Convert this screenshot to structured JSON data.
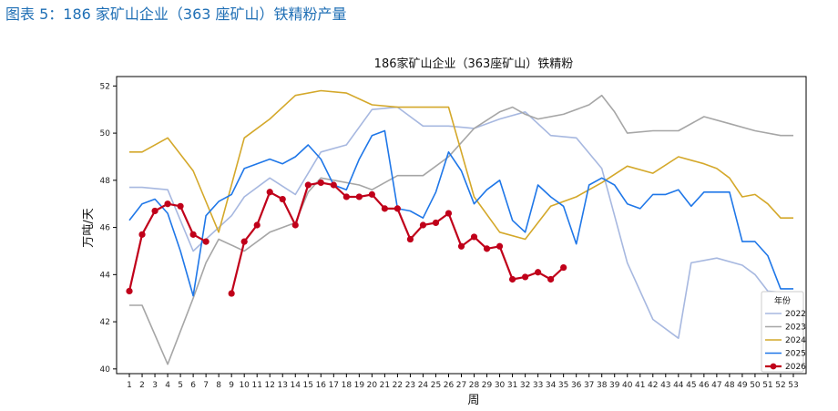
{
  "caption": "图表 5：186 家矿山企业（363 座矿山）铁精粉产量",
  "chart_data": {
    "type": "line",
    "title": "186家矿山企业（363座矿山）铁精粉",
    "xlabel": "周",
    "ylabel": "万吨/天",
    "x": [
      1,
      2,
      3,
      4,
      5,
      6,
      7,
      8,
      9,
      10,
      11,
      12,
      13,
      14,
      15,
      16,
      17,
      18,
      19,
      20,
      21,
      22,
      23,
      24,
      25,
      26,
      27,
      28,
      29,
      30,
      31,
      32,
      33,
      34,
      35,
      36,
      37,
      38,
      39,
      40,
      41,
      42,
      43,
      44,
      45,
      46,
      47,
      48,
      49,
      50,
      51,
      52,
      53
    ],
    "xlim": [
      0,
      54
    ],
    "ylim": [
      39.8,
      52.4
    ],
    "yticks": [
      40,
      42,
      44,
      46,
      48,
      50,
      52
    ],
    "grid": false,
    "legend": {
      "title": "年份",
      "placement": "lower-right"
    },
    "series": [
      {
        "name": "2022",
        "color": "#a7b8e0",
        "marker": false,
        "points": [
          [
            1,
            47.7
          ],
          [
            2,
            47.7
          ],
          [
            4,
            47.6
          ],
          [
            6,
            45.0
          ],
          [
            7,
            45.5
          ],
          [
            9,
            46.5
          ],
          [
            10,
            47.3
          ],
          [
            12,
            48.1
          ],
          [
            14,
            47.4
          ],
          [
            16,
            49.2
          ],
          [
            18,
            49.5
          ],
          [
            20,
            51.0
          ],
          [
            22,
            51.1
          ],
          [
            24,
            50.3
          ],
          [
            26,
            50.3
          ],
          [
            28,
            50.2
          ],
          [
            30,
            50.6
          ],
          [
            32,
            50.9
          ],
          [
            34,
            49.9
          ],
          [
            36,
            49.8
          ],
          [
            38,
            48.5
          ],
          [
            40,
            44.5
          ],
          [
            42,
            42.1
          ],
          [
            44,
            41.3
          ],
          [
            45,
            44.5
          ],
          [
            47,
            44.7
          ],
          [
            49,
            44.4
          ],
          [
            50,
            44.0
          ],
          [
            51,
            43.3
          ],
          [
            53,
            43.2
          ]
        ]
      },
      {
        "name": "2023",
        "color": "#a6a6a6",
        "marker": false,
        "points": [
          [
            1,
            42.7
          ],
          [
            2,
            42.7
          ],
          [
            4,
            40.2
          ],
          [
            6,
            43.0
          ],
          [
            7,
            44.5
          ],
          [
            8,
            45.5
          ],
          [
            10,
            45.0
          ],
          [
            12,
            45.8
          ],
          [
            14,
            46.2
          ],
          [
            15,
            47.5
          ],
          [
            16,
            48.1
          ],
          [
            17,
            48.0
          ],
          [
            19,
            47.8
          ],
          [
            20,
            47.6
          ],
          [
            22,
            48.2
          ],
          [
            24,
            48.2
          ],
          [
            26,
            49.0
          ],
          [
            28,
            50.2
          ],
          [
            30,
            50.9
          ],
          [
            31,
            51.1
          ],
          [
            32,
            50.8
          ],
          [
            33,
            50.6
          ],
          [
            35,
            50.8
          ],
          [
            37,
            51.2
          ],
          [
            38,
            51.6
          ],
          [
            39,
            50.9
          ],
          [
            40,
            50.0
          ],
          [
            42,
            50.1
          ],
          [
            44,
            50.1
          ],
          [
            46,
            50.7
          ],
          [
            48,
            50.4
          ],
          [
            50,
            50.1
          ],
          [
            52,
            49.9
          ],
          [
            53,
            49.9
          ]
        ]
      },
      {
        "name": "2024",
        "color": "#d4a82a",
        "marker": false,
        "points": [
          [
            1,
            49.2
          ],
          [
            2,
            49.2
          ],
          [
            4,
            49.8
          ],
          [
            6,
            48.4
          ],
          [
            8,
            45.8
          ],
          [
            10,
            49.8
          ],
          [
            12,
            50.6
          ],
          [
            14,
            51.6
          ],
          [
            16,
            51.8
          ],
          [
            18,
            51.7
          ],
          [
            20,
            51.2
          ],
          [
            22,
            51.1
          ],
          [
            24,
            51.1
          ],
          [
            26,
            51.1
          ],
          [
            28,
            47.3
          ],
          [
            30,
            45.8
          ],
          [
            32,
            45.5
          ],
          [
            34,
            46.9
          ],
          [
            36,
            47.3
          ],
          [
            38,
            47.9
          ],
          [
            40,
            48.6
          ],
          [
            42,
            48.3
          ],
          [
            44,
            49.0
          ],
          [
            46,
            48.7
          ],
          [
            47,
            48.5
          ],
          [
            48,
            48.1
          ],
          [
            49,
            47.3
          ],
          [
            50,
            47.4
          ],
          [
            51,
            47.0
          ],
          [
            52,
            46.4
          ],
          [
            53,
            46.4
          ]
        ]
      },
      {
        "name": "2025",
        "color": "#1f77e8",
        "marker": false,
        "points": [
          [
            1,
            46.3
          ],
          [
            2,
            47.0
          ],
          [
            3,
            47.2
          ],
          [
            4,
            46.6
          ],
          [
            5,
            45.0
          ],
          [
            6,
            43.1
          ],
          [
            7,
            46.5
          ],
          [
            8,
            47.1
          ],
          [
            9,
            47.4
          ],
          [
            10,
            48.5
          ],
          [
            11,
            48.7
          ],
          [
            12,
            48.9
          ],
          [
            13,
            48.7
          ],
          [
            14,
            49.0
          ],
          [
            15,
            49.5
          ],
          [
            16,
            48.9
          ],
          [
            17,
            47.8
          ],
          [
            18,
            47.6
          ],
          [
            19,
            48.9
          ],
          [
            20,
            49.9
          ],
          [
            21,
            50.1
          ],
          [
            22,
            46.8
          ],
          [
            23,
            46.7
          ],
          [
            24,
            46.4
          ],
          [
            25,
            47.5
          ],
          [
            26,
            49.2
          ],
          [
            27,
            48.4
          ],
          [
            28,
            47.0
          ],
          [
            29,
            47.6
          ],
          [
            30,
            48.0
          ],
          [
            31,
            46.3
          ],
          [
            32,
            45.8
          ],
          [
            33,
            47.8
          ],
          [
            34,
            47.3
          ],
          [
            35,
            46.9
          ],
          [
            36,
            45.3
          ],
          [
            37,
            47.8
          ],
          [
            38,
            48.1
          ],
          [
            39,
            47.8
          ],
          [
            40,
            47.0
          ],
          [
            41,
            46.8
          ],
          [
            42,
            47.4
          ],
          [
            43,
            47.4
          ],
          [
            44,
            47.6
          ],
          [
            45,
            46.9
          ],
          [
            46,
            47.5
          ],
          [
            47,
            47.5
          ],
          [
            48,
            47.5
          ],
          [
            49,
            45.4
          ],
          [
            50,
            45.4
          ],
          [
            51,
            44.8
          ],
          [
            52,
            43.4
          ],
          [
            53,
            43.4
          ]
        ]
      },
      {
        "name": "2026",
        "color": "#c0001a",
        "marker": true,
        "points": [
          [
            1,
            43.3
          ],
          [
            2,
            45.7
          ],
          [
            3,
            46.7
          ],
          [
            4,
            47.0
          ],
          [
            5,
            46.9
          ],
          [
            6,
            45.7
          ],
          [
            7,
            45.4
          ],
          null,
          [
            9,
            43.2
          ],
          [
            10,
            45.4
          ],
          [
            11,
            46.1
          ],
          [
            12,
            47.5
          ],
          [
            13,
            47.2
          ],
          [
            14,
            46.1
          ],
          [
            15,
            47.8
          ],
          [
            16,
            47.9
          ],
          [
            17,
            47.8
          ],
          [
            18,
            47.3
          ],
          [
            19,
            47.3
          ],
          [
            20,
            47.4
          ],
          [
            21,
            46.8
          ],
          [
            22,
            46.8
          ],
          [
            23,
            45.5
          ],
          [
            24,
            46.1
          ],
          [
            25,
            46.2
          ],
          [
            26,
            46.6
          ],
          [
            27,
            45.2
          ],
          [
            28,
            45.6
          ],
          [
            29,
            45.1
          ],
          [
            30,
            45.2
          ],
          [
            31,
            43.8
          ],
          [
            32,
            43.9
          ],
          [
            33,
            44.1
          ],
          [
            34,
            43.8
          ],
          [
            35,
            44.3
          ]
        ]
      }
    ]
  }
}
